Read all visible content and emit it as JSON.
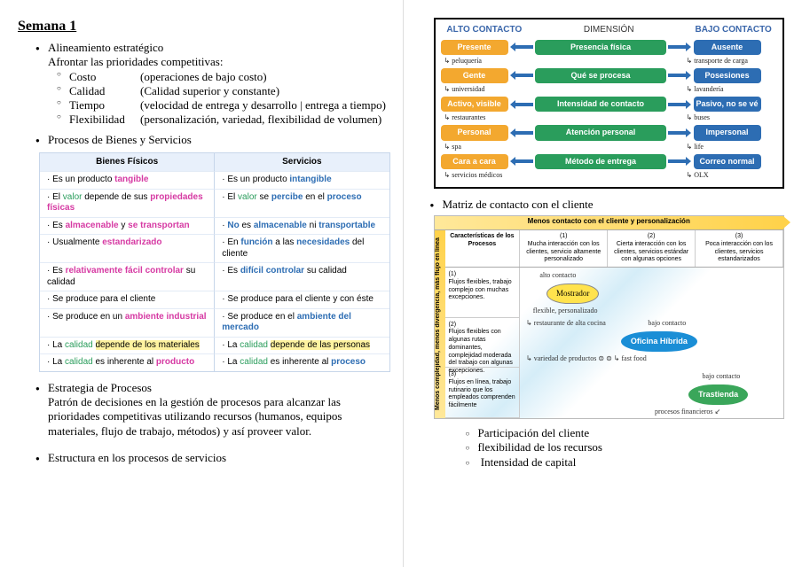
{
  "title": "Semana 1",
  "left": {
    "sec1_title": "Alineamiento estratégico",
    "sec1_sub": "Afrontar las prioridades competitivas:",
    "priorities": [
      {
        "k": "Costo",
        "v": "(operaciones de bajo costo)"
      },
      {
        "k": "Calidad",
        "v": "(Calidad superior y constante)"
      },
      {
        "k": "Tiempo",
        "v": "(velocidad de entrega y desarrollo | entrega a tiempo)"
      },
      {
        "k": "Flexibilidad",
        "v": "(personalización, variedad, flexibilidad de volumen)"
      }
    ],
    "sec2_title": "Procesos de Bienes y Servicios",
    "bs_headers": [
      "Bienes Físicos",
      "Servicios"
    ],
    "bs_rows": [
      [
        "· Es un producto <b style='color:#d63aa3'>tangible</b>",
        "· Es un producto <b style='color:#2d6db3'>intangible</b>"
      ],
      [
        "· El <span style='color:#2a9d5c'>valor</span> depende de sus <b style='color:#d63aa3'>propiedades físicas</b>",
        "· El <span style='color:#2a9d5c'>valor</span> se <b style='color:#2d6db3'>percibe</b> en el <b style='color:#2d6db3'>proceso</b>"
      ],
      [
        "· Es <b style='color:#d63aa3'>almacenable</b> y <b style='color:#d63aa3'>se transportan</b>",
        "· <b style='color:#2d6db3'>No</b> es <b style='color:#2d6db3'>almacenable</b> ni <b style='color:#2d6db3'>transportable</b>"
      ],
      [
        "· Usualmente <b style='color:#d63aa3'>estandarizado</b>",
        "· En <b style='color:#2d6db3'>función</b> a las <b style='color:#2d6db3'>necesidades</b> del cliente"
      ],
      [
        "· Es <b style='color:#d63aa3'>relativamente fácil controlar</b> su calidad",
        "· Es <b style='color:#2d6db3'>difícil controlar</b> su calidad"
      ],
      [
        "· Se produce para el cliente",
        "· Se produce para el cliente y con éste"
      ],
      [
        "· Se produce en un <b style='color:#d63aa3'>ambiente industrial</b>",
        "· Se produce en el <b style='color:#2d6db3'>ambiente del mercado</b>"
      ],
      [
        "· La <span style='color:#2a9d5c'>calidad</span> <span style='background:#fff3a0'>depende de los materiales</span>",
        "· La <span style='color:#2a9d5c'>calidad</span> <span style='background:#fff3a0'>depende de las personas</span>"
      ],
      [
        "· La <span style='color:#2a9d5c'>calidad</span> es inherente al <b style='color:#d63aa3'>producto</b>",
        "· La <span style='color:#2a9d5c'>calidad</span> es inherente al <b style='color:#2d6db3'>proceso</b>"
      ]
    ],
    "sec3_title": "Estrategia de Procesos",
    "sec3_body": "Patrón de decisiones en la gestión de procesos para alcanzar las prioridades competitivas utilizando recursos (humanos, equipos materiales, flujo de trabajo, métodos) y así proveer valor.",
    "sec4_title": "Estructura en los procesos de servicios"
  },
  "right": {
    "contact_headers": [
      "ALTO CONTACTO",
      "DIMENSIÓN",
      "BAJO CONTACTO"
    ],
    "contact_rows": [
      {
        "l": "Presente",
        "m": "Presencia física",
        "r": "Ausente",
        "hl": "↳ peluquería",
        "hr": "↳ transporte de carga"
      },
      {
        "l": "Gente",
        "m": "Qué se procesa",
        "r": "Posesiones",
        "hl": "↳ universidad",
        "hr": "↳ lavandería"
      },
      {
        "l": "Activo, visible",
        "m": "Intensidad de contacto",
        "r": "Pasivo, no se vé",
        "hl": "↳ restaurantes",
        "hr": "↳ buses"
      },
      {
        "l": "Personal",
        "m": "Atención personal",
        "r": "Impersonal",
        "hl": "↳ spa",
        "hr": "↳ life"
      },
      {
        "l": "Cara a cara",
        "m": "Método de entrega",
        "r": "Correo normal",
        "hl": "↳ servicios médicos",
        "hr": "↳ OLX"
      }
    ],
    "matrix_title": "Matriz de contacto con el cliente",
    "mx_top": "Menos contacto con el cliente y personalización",
    "mx_y": "Menos complejidad, menos divergencia, más flujo en línea",
    "mx_col0": "Características de los Procesos",
    "mx_cols": [
      "(1)\nMucha interacción con los clientes, servicio altamente personalizado",
      "(2)\nCierta interacción con los clientes, servicios estándar con algunas opciones",
      "(3)\nPoca interacción con los clientes, servicios estandarizados"
    ],
    "mx_rows": [
      "(1)\nFlujos flexibles, trabajo complejo con muchas excepciones.",
      "(2)\nFlujos flexibles con algunas rutas dominantes, complejidad moderada del trabajo con algunas excepciones.",
      "(3)\nFlujos en línea, trabajo rutinario que los empleados comprenden fácilmente"
    ],
    "bubbles": {
      "most_label": "Mostrador",
      "most_note1": "alto contacto",
      "most_note2": "flexible, personalizado",
      "most_note3": "↳ restaurante de alta cocina",
      "ofi_label": "Oficina Híbrida",
      "ofi_note1": "bajo contacto",
      "ofi_note2": "↳ variedad de productos  ⊜ ⊜  ↳ fast food",
      "tra_label": "Trastienda",
      "tra_note1": "bajo contacto",
      "tra_note2": "procesos financieros ↙"
    },
    "sublist": [
      "Participación del cliente",
      "flexibilidad de los recursos",
      " Intensidad de capital"
    ]
  },
  "colors": {
    "orange": "#f3a82f",
    "green": "#2a9d5c",
    "blue": "#2d6db3",
    "arrow": "#2d6db3"
  }
}
